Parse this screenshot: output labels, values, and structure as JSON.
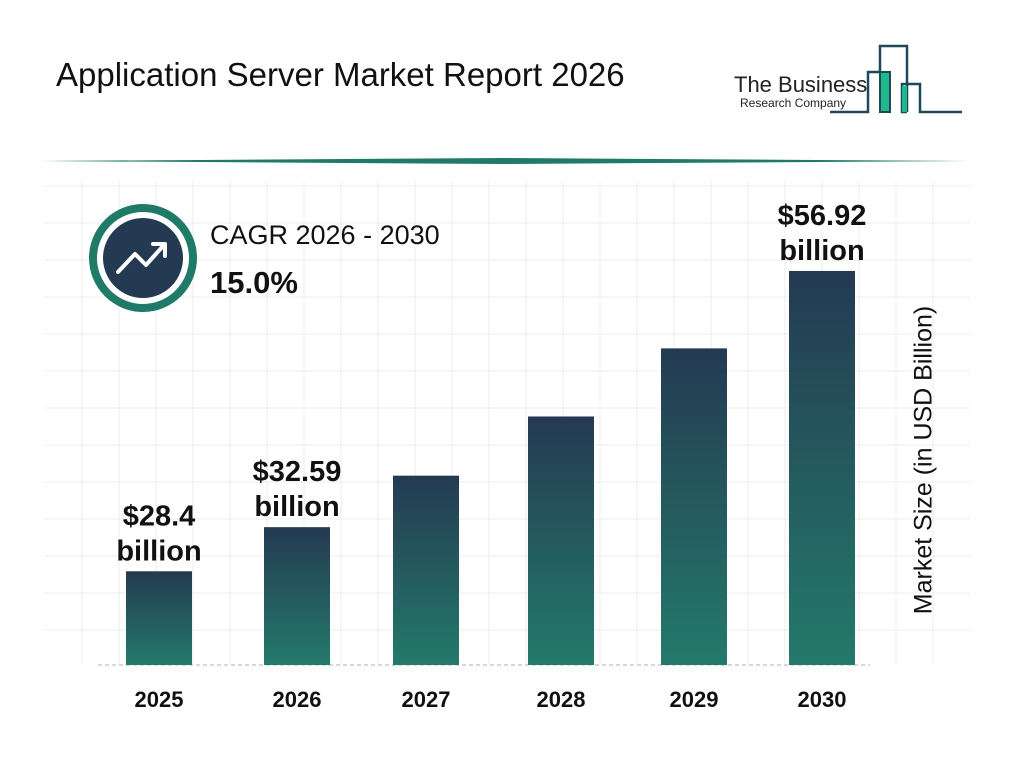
{
  "title": "Application Server Market Report 2026",
  "logo": {
    "line1": "The Business",
    "line2": "Research Company"
  },
  "cagr": {
    "label": "CAGR 2026 - 2030",
    "value": "15.0%",
    "icon": "trend-up-arrow-icon"
  },
  "colors": {
    "bar_top": "#243a52",
    "bar_bottom": "#237a6a",
    "accent": "#1f7a68",
    "logo_green": "#1fb88a"
  },
  "chart_data": {
    "type": "bar",
    "categories": [
      "2025",
      "2026",
      "2027",
      "2028",
      "2029",
      "2030"
    ],
    "values": [
      28.4,
      32.59,
      37.48,
      43.1,
      49.57,
      56.92
    ],
    "data_labels": [
      [
        "$28.4",
        "billion"
      ],
      [
        "$32.59",
        "billion"
      ],
      null,
      null,
      null,
      [
        "$56.92",
        "billion"
      ]
    ],
    "xlabel": "",
    "ylabel": "Market Size (in USD Billion)",
    "grid": true
  }
}
